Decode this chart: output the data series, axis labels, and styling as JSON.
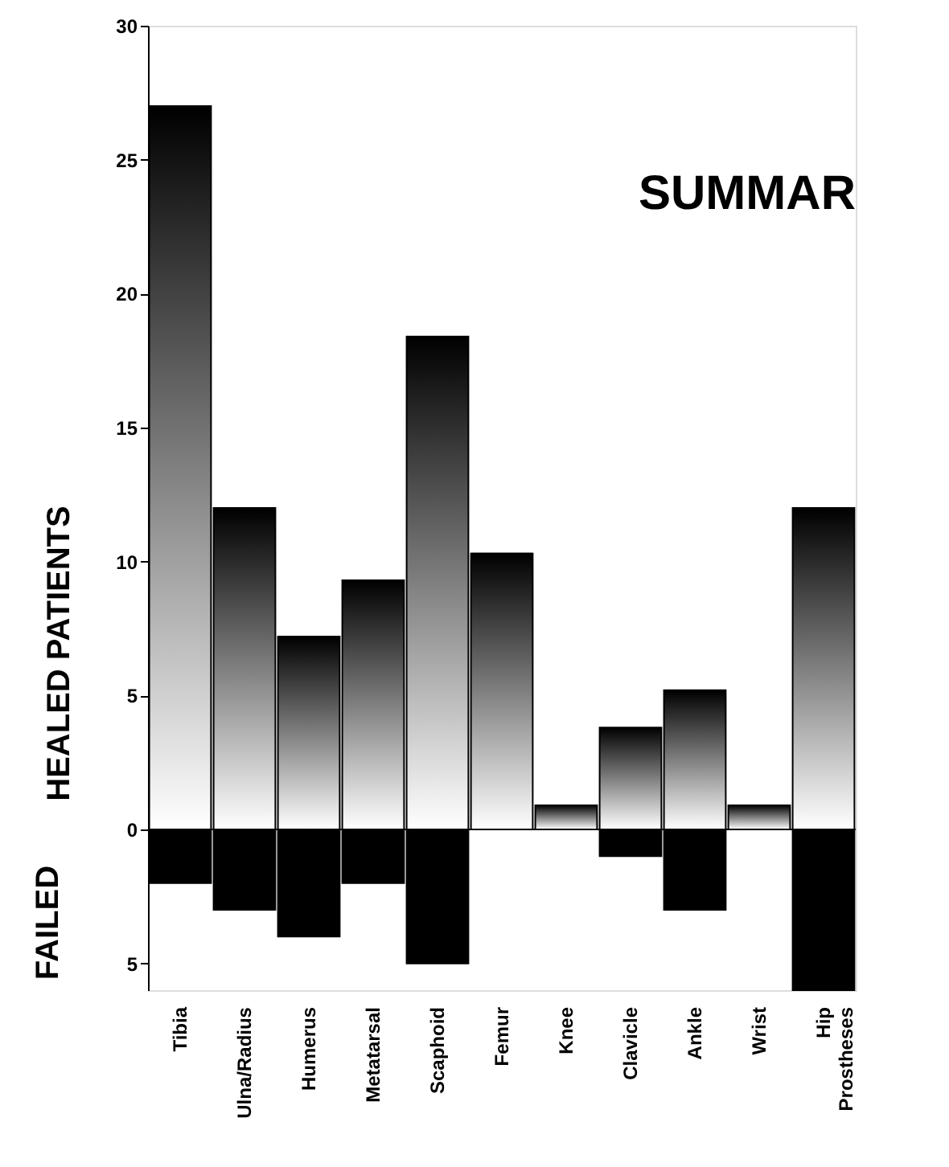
{
  "chart_data": {
    "type": "bar",
    "title": "SUMMAR",
    "ylabel": "HEALED PATIENTS",
    "annotations": [
      "FAILED"
    ],
    "categories": [
      "Tibia",
      "Ulna/Radius",
      "Humerus",
      "Metatarsal",
      "Scaphoid",
      "Femur",
      "Knee",
      "Clavicle",
      "Ankle",
      "Wrist",
      "Hip Prostheses"
    ],
    "series": [
      {
        "color": "#000000",
        "values": [
          27,
          12,
          7.2,
          9.3,
          18.4,
          10.3,
          0.9,
          3.8,
          5.2,
          0.9,
          12
        ]
      },
      {
        "color": "#000000",
        "values": [
          -2,
          -3,
          -4,
          -2,
          -5,
          0,
          0,
          -1,
          -3,
          0,
          -6
        ]
      }
    ],
    "stacked": true,
    "ylim": [
      -6,
      30
    ],
    "yticks": [
      {
        "value": -5,
        "label": "5"
      },
      0,
      5,
      10,
      15,
      20,
      25,
      30
    ]
  }
}
